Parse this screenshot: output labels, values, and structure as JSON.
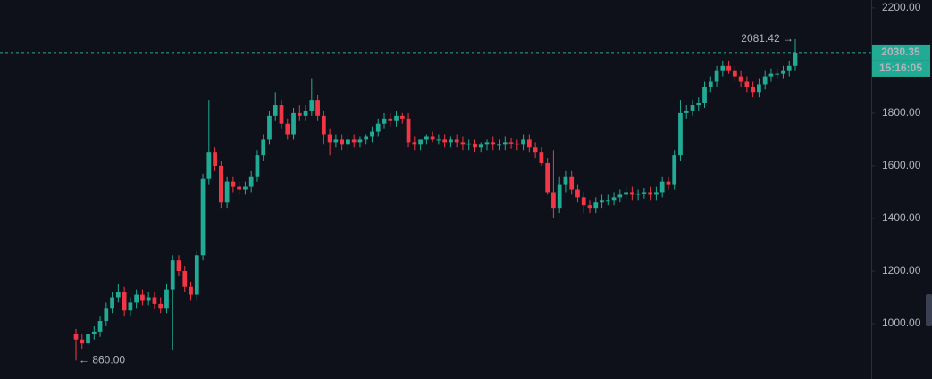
{
  "chart_data": {
    "type": "candlestick",
    "open": [
      960,
      940,
      925,
      960,
      970,
      1010,
      1060,
      1100,
      1120,
      1050,
      1080,
      1110,
      1090,
      1100,
      1075,
      1060,
      1130,
      1240,
      1200,
      1140,
      1110,
      1260,
      1550,
      1650,
      1600,
      1460,
      1540,
      1520,
      1510,
      1520,
      1560,
      1640,
      1700,
      1790,
      1830,
      1760,
      1720,
      1800,
      1790,
      1810,
      1850,
      1790,
      1720,
      1690,
      1700,
      1680,
      1700,
      1690,
      1700,
      1710,
      1730,
      1760,
      1780,
      1770,
      1790,
      1780,
      1690,
      1680,
      1700,
      1710,
      1700,
      1700,
      1690,
      1700,
      1690,
      1680,
      1685,
      1670,
      1680,
      1690,
      1680,
      1680,
      1690,
      1685,
      1680,
      1700,
      1670,
      1650,
      1610,
      1500,
      1440,
      1530,
      1560,
      1510,
      1480,
      1450,
      1440,
      1460,
      1470,
      1470,
      1480,
      1490,
      1500,
      1490,
      1495,
      1500,
      1490,
      1500,
      1540,
      1530,
      1640,
      1800,
      1810,
      1830,
      1840,
      1900,
      1920,
      1960,
      1980,
      1960,
      1940,
      1920,
      1900,
      1880,
      1910,
      1940,
      1950,
      1950,
      1960,
      1980
    ],
    "high": [
      980,
      960,
      980,
      990,
      1030,
      1080,
      1120,
      1150,
      1140,
      1100,
      1130,
      1130,
      1120,
      1120,
      1100,
      1150,
      1260,
      1260,
      1220,
      1160,
      1280,
      1570,
      1850,
      1670,
      1620,
      1560,
      1560,
      1540,
      1540,
      1580,
      1660,
      1720,
      1810,
      1880,
      1850,
      1780,
      1820,
      1830,
      1830,
      1930,
      1870,
      1810,
      1740,
      1720,
      1720,
      1720,
      1720,
      1710,
      1720,
      1750,
      1780,
      1800,
      1800,
      1810,
      1800,
      1800,
      1710,
      1700,
      1720,
      1730,
      1720,
      1720,
      1710,
      1720,
      1710,
      1700,
      1700,
      1690,
      1700,
      1710,
      1700,
      1710,
      1705,
      1700,
      1720,
      1720,
      1690,
      1670,
      1630,
      1660,
      1560,
      1580,
      1580,
      1530,
      1500,
      1470,
      1480,
      1490,
      1490,
      1500,
      1510,
      1520,
      1520,
      1510,
      1515,
      1520,
      1520,
      1560,
      1560,
      1660,
      1850,
      1830,
      1850,
      1860,
      1920,
      1940,
      1980,
      2000,
      2000,
      1980,
      1960,
      1940,
      1920,
      1930,
      1960,
      1970,
      1970,
      1980,
      2000,
      2081.42
    ],
    "low": [
      860,
      905,
      905,
      940,
      950,
      990,
      1040,
      1080,
      1030,
      1030,
      1060,
      1070,
      1070,
      1055,
      1040,
      1040,
      900,
      1180,
      1120,
      1090,
      1090,
      1240,
      1530,
      1580,
      1440,
      1440,
      1500,
      1490,
      1490,
      1500,
      1540,
      1620,
      1680,
      1770,
      1740,
      1700,
      1700,
      1770,
      1770,
      1790,
      1770,
      1680,
      1640,
      1670,
      1660,
      1660,
      1670,
      1670,
      1680,
      1690,
      1710,
      1740,
      1750,
      1750,
      1760,
      1670,
      1660,
      1660,
      1680,
      1690,
      1680,
      1670,
      1670,
      1670,
      1660,
      1660,
      1650,
      1650,
      1660,
      1660,
      1660,
      1660,
      1665,
      1660,
      1660,
      1650,
      1630,
      1600,
      1490,
      1400,
      1420,
      1500,
      1490,
      1460,
      1420,
      1420,
      1420,
      1440,
      1450,
      1450,
      1460,
      1470,
      1470,
      1470,
      1475,
      1470,
      1470,
      1480,
      1510,
      1510,
      1620,
      1780,
      1790,
      1810,
      1820,
      1880,
      1900,
      1940,
      1950,
      1920,
      1900,
      1880,
      1860,
      1860,
      1890,
      1920,
      1930,
      1930,
      1940,
      1960
    ],
    "close": [
      940,
      925,
      960,
      970,
      1010,
      1060,
      1100,
      1120,
      1050,
      1080,
      1110,
      1090,
      1100,
      1075,
      1060,
      1130,
      1240,
      1200,
      1140,
      1110,
      1260,
      1550,
      1650,
      1600,
      1460,
      1540,
      1520,
      1510,
      1520,
      1560,
      1640,
      1700,
      1790,
      1830,
      1760,
      1720,
      1800,
      1790,
      1810,
      1850,
      1790,
      1720,
      1690,
      1700,
      1680,
      1700,
      1690,
      1700,
      1710,
      1730,
      1760,
      1780,
      1770,
      1790,
      1780,
      1690,
      1680,
      1700,
      1710,
      1700,
      1700,
      1690,
      1700,
      1690,
      1680,
      1685,
      1670,
      1680,
      1690,
      1680,
      1680,
      1690,
      1685,
      1680,
      1700,
      1670,
      1650,
      1610,
      1500,
      1440,
      1530,
      1560,
      1510,
      1480,
      1450,
      1440,
      1460,
      1470,
      1470,
      1480,
      1490,
      1500,
      1490,
      1495,
      1500,
      1490,
      1500,
      1540,
      1530,
      1640,
      1800,
      1810,
      1830,
      1840,
      1900,
      1920,
      1960,
      1980,
      1960,
      1940,
      1920,
      1900,
      1880,
      1910,
      1940,
      1950,
      1950,
      1960,
      1980,
      2030.35
    ],
    "up_color": "#22ab94",
    "down_color": "#f23645",
    "ylim": [
      790,
      2230
    ],
    "yticks": [
      {
        "value": 2200,
        "label": "2200.00"
      },
      {
        "value": 1800,
        "label": "1800.00"
      },
      {
        "value": 1600,
        "label": "1600.00"
      },
      {
        "value": 1400,
        "label": "1400.00"
      },
      {
        "value": 1200,
        "label": "1200.00"
      },
      {
        "value": 1000,
        "label": "1000.00"
      }
    ],
    "high_marker": {
      "value": 2081.42,
      "label": "2081.42 →"
    },
    "low_marker": {
      "value": 860,
      "label": "← 860.00"
    },
    "last_price": 2030.35,
    "countdown": "15:16:05"
  }
}
